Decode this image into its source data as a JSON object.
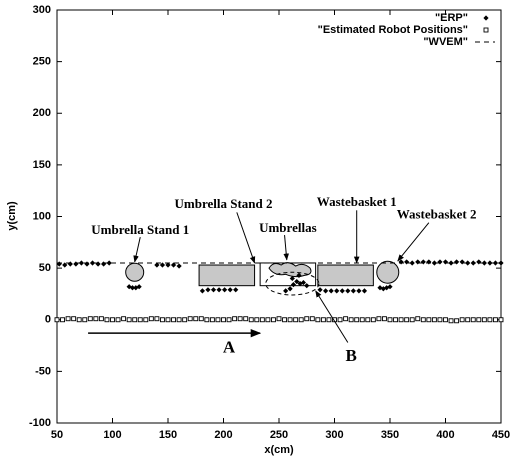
{
  "chart_data": {
    "type": "scatter",
    "xlabel": "x(cm)",
    "ylabel": "y(cm)",
    "xlim": [
      50,
      450
    ],
    "ylim": [
      -100,
      300
    ],
    "xticks": [
      50,
      100,
      150,
      200,
      250,
      300,
      350,
      400,
      450
    ],
    "yticks": [
      -100,
      -50,
      0,
      50,
      100,
      150,
      200,
      250,
      300
    ],
    "legend": "top-right",
    "series": [
      {
        "name": "\"ERP\"",
        "color": "#000000",
        "marker": "diamond",
        "x": [
          52,
          57,
          62,
          67,
          72,
          77,
          82,
          87,
          92,
          97,
          115,
          118,
          121,
          124,
          140,
          145,
          150,
          155,
          160,
          181,
          186,
          191,
          196,
          201,
          206,
          211,
          256,
          260,
          263,
          266,
          269,
          272,
          275,
          262,
          268,
          287,
          292,
          297,
          302,
          307,
          312,
          317,
          322,
          327,
          341,
          344,
          347,
          350,
          360,
          365,
          370,
          375,
          380,
          385,
          390,
          395,
          400,
          405,
          410,
          415,
          420,
          425,
          430,
          435,
          440,
          445,
          450
        ],
        "values": [
          54,
          53,
          54,
          54,
          55,
          54,
          55,
          54,
          54,
          55,
          32,
          31,
          31,
          32,
          53,
          53,
          53,
          53,
          52,
          28,
          29,
          29,
          29,
          29,
          29,
          29,
          28,
          30,
          34,
          37,
          35,
          36,
          33,
          40,
          43,
          29,
          28,
          28,
          28,
          28,
          28,
          28,
          28,
          28,
          31,
          30,
          31,
          32,
          56,
          56,
          55,
          56,
          56,
          56,
          55,
          56,
          56,
          55,
          56,
          56,
          55,
          55,
          56,
          55,
          55,
          55,
          55
        ]
      },
      {
        "name": "\"Estimated Robot Positions\"",
        "color": "#000000",
        "marker": "square",
        "x": [
          50,
          55,
          60,
          65,
          70,
          75,
          80,
          85,
          90,
          95,
          100,
          105,
          110,
          115,
          120,
          125,
          130,
          135,
          140,
          145,
          150,
          155,
          160,
          165,
          170,
          175,
          180,
          185,
          190,
          195,
          200,
          205,
          210,
          215,
          220,
          225,
          230,
          235,
          240,
          245,
          250,
          255,
          260,
          265,
          270,
          275,
          280,
          285,
          290,
          295,
          300,
          305,
          310,
          315,
          320,
          325,
          330,
          335,
          340,
          345,
          350,
          355,
          360,
          365,
          370,
          375,
          380,
          385,
          390,
          395,
          400,
          405,
          410,
          415,
          420,
          425,
          430,
          435,
          440,
          445,
          450
        ],
        "values": [
          0,
          0,
          1,
          1,
          0,
          0,
          1,
          1,
          1,
          0,
          0,
          0,
          1,
          0,
          0,
          0,
          0,
          1,
          1,
          0,
          0,
          0,
          0,
          0,
          1,
          1,
          1,
          0,
          0,
          0,
          0,
          0,
          1,
          1,
          1,
          0,
          0,
          0,
          0,
          0,
          1,
          0,
          0,
          0,
          0,
          1,
          1,
          0,
          0,
          0,
          0,
          0,
          1,
          0,
          0,
          0,
          0,
          0,
          1,
          1,
          0,
          0,
          0,
          0,
          0,
          1,
          0,
          0,
          0,
          0,
          0,
          -1,
          -1,
          0,
          0,
          0,
          0,
          0,
          0,
          0,
          0
        ]
      },
      {
        "name": "\"WVEM\"",
        "color": "#000000",
        "marker": "none",
        "dash": true,
        "x": [
          50,
          450
        ],
        "values": [
          55,
          55
        ]
      }
    ],
    "annotations": [
      "Umbrella Stand 1",
      "Umbrella Stand 2",
      "Umbrellas",
      "Wastebasket 1",
      "Wastebasket 2",
      "A",
      "B"
    ]
  }
}
